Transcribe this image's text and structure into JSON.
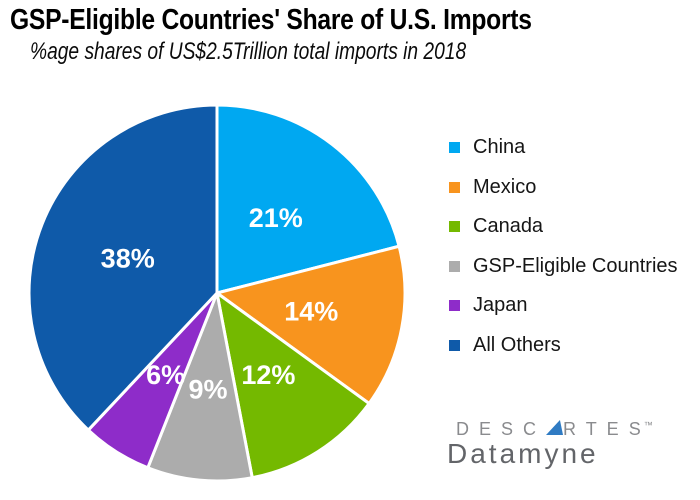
{
  "chart_data": {
    "type": "pie",
    "title": "GSP-Eligible Countries' Share of U.S. Imports",
    "subtitle": "%age shares of US$2.5Trillion total imports in 2018",
    "unit": "percent",
    "direction": "clockwise",
    "start_angle_deg": 0,
    "legend_position": "right",
    "slice_border_color": "#FFFFFF",
    "slice_label_color": "#FFFFFF",
    "segments": [
      {
        "label": "China",
        "value": 21,
        "display": "21%",
        "color": "#00A8F1"
      },
      {
        "label": "Mexico",
        "value": 14,
        "display": "14%",
        "color": "#F8941E"
      },
      {
        "label": "Canada",
        "value": 12,
        "display": "12%",
        "color": "#74B900"
      },
      {
        "label": "GSP-Eligible Countries",
        "value": 9,
        "display": "9%",
        "color": "#ACACAC"
      },
      {
        "label": "Japan",
        "value": 6,
        "display": "6%",
        "color": "#8E2CC9"
      },
      {
        "label": "All Others",
        "value": 38,
        "display": "38%",
        "color": "#0F5AA9"
      }
    ]
  },
  "logo": {
    "brand_prefix": "DESC",
    "brand_suffix": "RTES",
    "trademark": "™",
    "product": "Datamyne",
    "triangle_color": "#2F7BC3"
  }
}
